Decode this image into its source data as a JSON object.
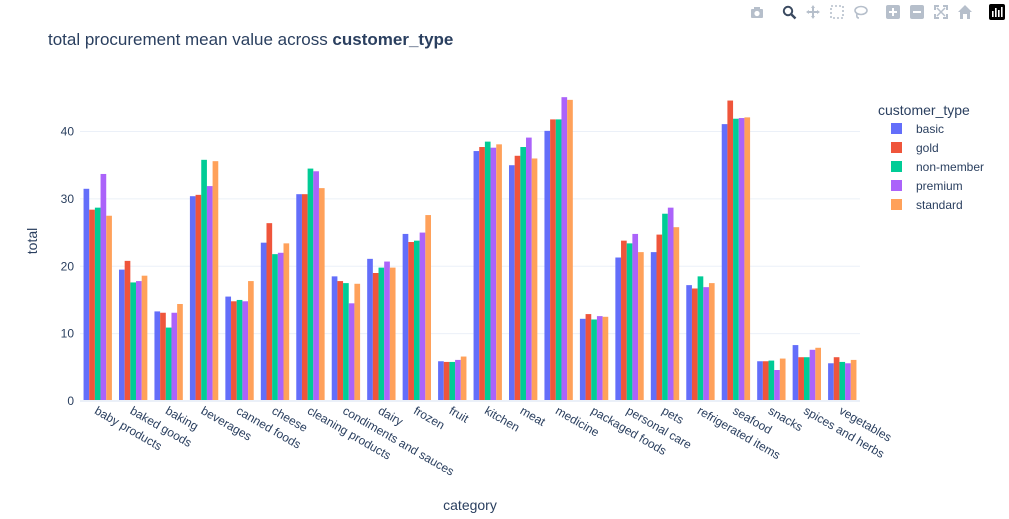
{
  "title": {
    "prefix": "total procurement mean value across ",
    "bold": "customer_type"
  },
  "modebar": [
    {
      "name": "camera-icon",
      "color": "#b6bfcb"
    },
    {
      "name": "zoom-icon",
      "color": "#3a4a60"
    },
    {
      "name": "pan-icon",
      "color": "#b6bfcb"
    },
    {
      "name": "box-select-icon",
      "color": "#b6bfcb"
    },
    {
      "name": "lasso-icon",
      "color": "#b6bfcb"
    },
    {
      "name": "zoom-in-icon",
      "color": "#b6bfcb"
    },
    {
      "name": "zoom-out-icon",
      "color": "#b6bfcb"
    },
    {
      "name": "autoscale-icon",
      "color": "#b6bfcb"
    },
    {
      "name": "reset-axes-icon",
      "color": "#b6bfcb"
    },
    {
      "name": "plotly-logo-icon",
      "color": "#000000"
    }
  ],
  "chart_data": {
    "type": "bar",
    "xlabel": "category",
    "ylabel": "total",
    "ylim": [
      0,
      47.5
    ],
    "yticks": [
      0,
      10,
      20,
      30,
      40
    ],
    "grid": true,
    "legend_title": "customer_type",
    "legend_position": "top-right",
    "categories": [
      "baby products",
      "baked goods",
      "baking",
      "beverages",
      "canned foods",
      "cheese",
      "cleaning products",
      "condiments and sauces",
      "dairy",
      "frozen",
      "fruit",
      "kitchen",
      "meat",
      "medicine",
      "packaged foods",
      "personal care",
      "pets",
      "refrigerated items",
      "seafood",
      "snacks",
      "spices and herbs",
      "vegetables"
    ],
    "series": [
      {
        "name": "basic",
        "color": "#636efa",
        "values": [
          31.5,
          19.5,
          13.3,
          30.4,
          15.5,
          23.5,
          30.7,
          18.5,
          21.1,
          24.8,
          5.9,
          37.1,
          35.0,
          40.1,
          12.2,
          21.3,
          22.1,
          17.2,
          41.1,
          5.9,
          8.3,
          5.6
        ]
      },
      {
        "name": "gold",
        "color": "#ef553b",
        "values": [
          28.4,
          20.8,
          13.1,
          30.6,
          14.8,
          26.4,
          30.7,
          17.8,
          19.0,
          23.6,
          5.8,
          37.7,
          36.4,
          41.8,
          12.9,
          23.8,
          24.7,
          16.7,
          44.6,
          5.9,
          6.5,
          6.5
        ]
      },
      {
        "name": "non-member",
        "color": "#00cc96",
        "values": [
          28.7,
          17.6,
          10.9,
          35.8,
          15.0,
          21.8,
          34.5,
          17.5,
          19.8,
          23.8,
          5.8,
          38.5,
          37.7,
          41.8,
          12.1,
          23.4,
          27.8,
          18.5,
          41.9,
          6.0,
          6.5,
          5.8
        ]
      },
      {
        "name": "premium",
        "color": "#ab63fa",
        "values": [
          33.7,
          17.8,
          13.1,
          31.9,
          14.8,
          22.0,
          34.1,
          14.5,
          20.7,
          25.0,
          6.1,
          37.6,
          39.1,
          45.1,
          12.6,
          24.8,
          28.7,
          16.9,
          42.0,
          4.6,
          7.6,
          5.6
        ]
      },
      {
        "name": "standard",
        "color": "#ffa15a",
        "values": [
          27.5,
          18.6,
          14.4,
          35.6,
          17.8,
          23.4,
          31.6,
          17.4,
          19.8,
          27.6,
          6.6,
          38.1,
          36.0,
          44.7,
          12.5,
          22.1,
          25.8,
          17.5,
          42.1,
          6.3,
          7.9,
          6.1
        ]
      }
    ]
  }
}
